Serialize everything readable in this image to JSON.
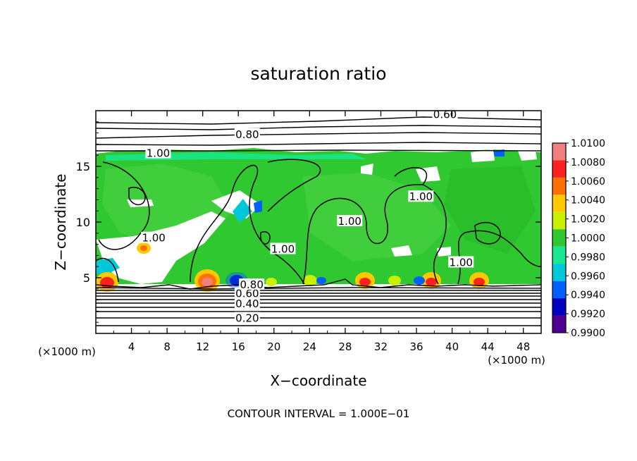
{
  "chart_data": {
    "type": "heatmap",
    "title": "saturation ratio",
    "xlabel": "X−coordinate",
    "ylabel": "Z−coordinate",
    "x_unit": "(×1000 m)",
    "z_unit": "(×1000 m)",
    "xlim": [
      0,
      50
    ],
    "ylim": [
      0,
      20
    ],
    "x_ticks": [
      4,
      8,
      12,
      16,
      20,
      24,
      28,
      32,
      36,
      40,
      44,
      48
    ],
    "y_ticks": [
      5,
      10,
      15
    ],
    "contour_interval_text": "CONTOUR INTERVAL = 1.000E−01",
    "colorbar": {
      "labels": [
        "1.0100",
        "1.0080",
        "1.0060",
        "1.0040",
        "1.0020",
        "1.0000",
        "0.9980",
        "0.9960",
        "0.9940",
        "0.9920",
        "0.9900"
      ],
      "colors": [
        "#f08080",
        "#ff2020",
        "#ff7000",
        "#ffc800",
        "#c8f000",
        "#30c830",
        "#18e890",
        "#00c8d8",
        "#0060ff",
        "#0000c0",
        "#500090"
      ]
    },
    "contour_labels": [
      {
        "text": "0.20",
        "x": 17,
        "z": 1.3
      },
      {
        "text": "0.40",
        "x": 17,
        "z": 2.6
      },
      {
        "text": "0.60",
        "x": 17,
        "z": 3.5
      },
      {
        "text": "0.80",
        "x": 17.5,
        "z": 4.3
      },
      {
        "text": "0.80",
        "x": 17,
        "z": 17.8
      },
      {
        "text": "0.60",
        "x": 39.2,
        "z": 19.6
      },
      {
        "text": "1.00",
        "x": 7,
        "z": 16.1
      },
      {
        "text": "1.00",
        "x": 28.5,
        "z": 10
      },
      {
        "text": "1.00",
        "x": 6.5,
        "z": 8.5
      },
      {
        "text": "1.00",
        "x": 21,
        "z": 7.5
      },
      {
        "text": "1.00",
        "x": 41,
        "z": 6.3
      },
      {
        "text": "1.00",
        "x": 36.5,
        "z": 12.2
      }
    ]
  }
}
